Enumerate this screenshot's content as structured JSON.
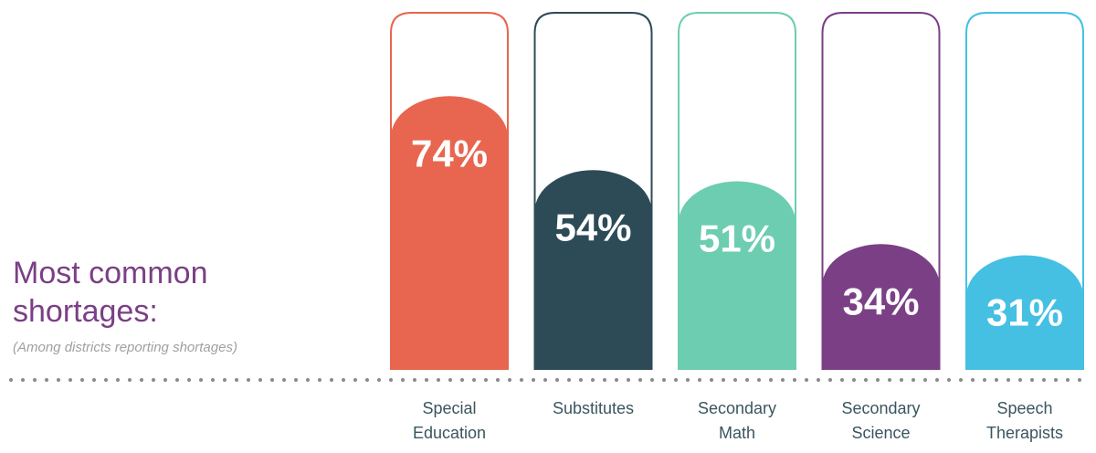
{
  "chart_data": {
    "type": "bar",
    "title": "Most common shortages:",
    "subtitle": "(Among districts reporting shortages)",
    "categories": [
      "Special Education",
      "Substitutes",
      "Secondary Math",
      "Secondary Science",
      "Speech Therapists"
    ],
    "values": [
      74,
      54,
      51,
      34,
      31
    ],
    "value_labels": [
      "74%",
      "54%",
      "51%",
      "34%",
      "31%"
    ],
    "colors": [
      "#e8664f",
      "#2d4b57",
      "#6dcdb0",
      "#7b3f86",
      "#45c0e3"
    ],
    "ylim": [
      0,
      100
    ]
  }
}
